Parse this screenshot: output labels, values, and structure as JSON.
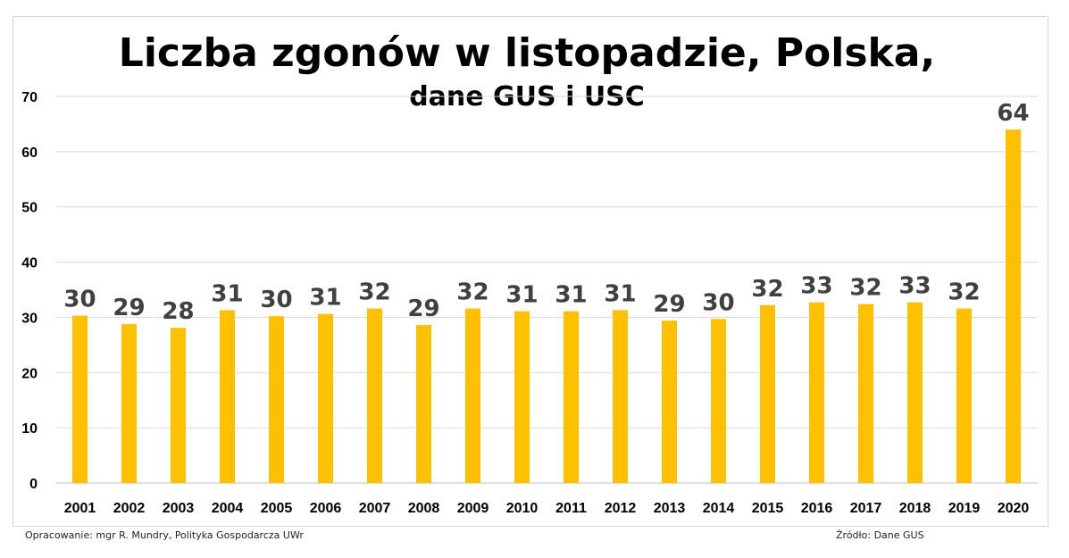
{
  "chart_data": {
    "type": "bar",
    "title": "Liczba zgonów w listopadzie, Polska,",
    "subtitle": "dane GUS i USC",
    "categories": [
      "2001",
      "2002",
      "2003",
      "2004",
      "2005",
      "2006",
      "2007",
      "2008",
      "2009",
      "2010",
      "2011",
      "2012",
      "2013",
      "2014",
      "2015",
      "2016",
      "2017",
      "2018",
      "2019",
      "2020"
    ],
    "values": [
      30.3,
      28.8,
      28.1,
      31.3,
      30.2,
      30.6,
      31.6,
      28.6,
      31.6,
      31.1,
      31.1,
      31.3,
      29.4,
      29.7,
      32.2,
      32.7,
      32.4,
      32.7,
      31.6,
      64.0
    ],
    "data_labels": [
      "30",
      "29",
      "28",
      "31",
      "30",
      "31",
      "32",
      "29",
      "32",
      "31",
      "31",
      "31",
      "29",
      "30",
      "32",
      "33",
      "32",
      "33",
      "32",
      "64"
    ],
    "ylim": [
      0,
      70
    ],
    "yticks": [
      "0",
      "10",
      "20",
      "30",
      "40",
      "50",
      "60",
      "70"
    ],
    "grid": true,
    "bar_color": "#FFC000"
  },
  "footer": {
    "left": "Opracowanie: mgr R. Mundry, Polityka Gospodarcza UWr",
    "right": "Źródło: Dane GUS"
  }
}
